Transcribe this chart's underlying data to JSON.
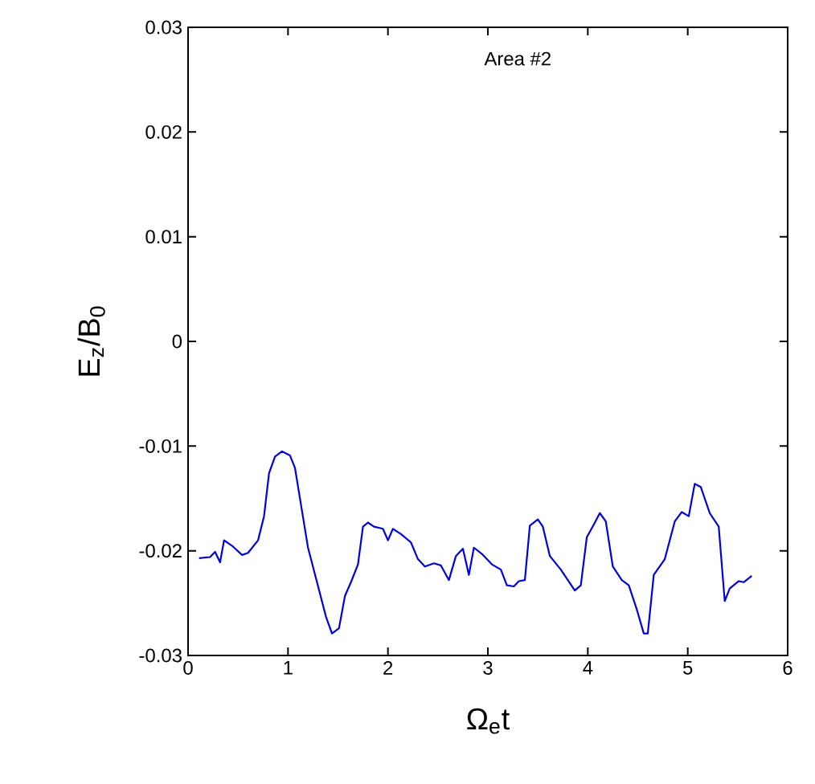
{
  "chart_data": {
    "type": "line",
    "xlabel": "Ω$_{e}$t",
    "ylabel": "E$_{z}$/B$_{0}$",
    "annotations": [
      "Area #2"
    ],
    "xlim": [
      0,
      6
    ],
    "xticks": [
      0,
      1,
      2,
      3,
      4,
      5,
      6
    ],
    "ylim": [
      -0.03,
      0.03
    ],
    "yticks": [
      -0.03,
      -0.02,
      -0.01,
      0,
      0.01,
      0.02,
      0.03
    ],
    "grid": false,
    "marker": "none",
    "line_style": "solid",
    "series": [
      {
        "color": "#0000dd",
        "x": [
          0.11,
          0.22,
          0.27,
          0.32,
          0.36,
          0.45,
          0.54,
          0.6,
          0.7,
          0.76,
          0.81,
          0.87,
          0.94,
          1.02,
          1.07,
          1.14,
          1.2,
          1.29,
          1.38,
          1.44,
          1.51,
          1.57,
          1.63,
          1.7,
          1.75,
          1.8,
          1.86,
          1.95,
          2.0,
          2.05,
          2.13,
          2.23,
          2.3,
          2.37,
          2.46,
          2.53,
          2.61,
          2.68,
          2.75,
          2.81,
          2.86,
          2.94,
          3.04,
          3.13,
          3.19,
          3.26,
          3.31,
          3.37,
          3.42,
          3.5,
          3.55,
          3.62,
          3.73,
          3.8,
          3.87,
          3.93,
          3.99,
          4.06,
          4.12,
          4.18,
          4.25,
          4.34,
          4.41,
          4.49,
          4.56,
          4.6,
          4.66,
          4.77,
          4.87,
          4.94,
          5.01,
          5.07,
          5.13,
          5.22,
          5.31,
          5.37,
          5.42,
          5.51,
          5.56,
          5.64
        ],
        "values": [
          -0.0207,
          -0.0206,
          -0.0201,
          -0.0211,
          -0.019,
          -0.0196,
          -0.0204,
          -0.0202,
          -0.019,
          -0.0167,
          -0.0126,
          -0.011,
          -0.0105,
          -0.0109,
          -0.0121,
          -0.0162,
          -0.0197,
          -0.023,
          -0.0263,
          -0.0279,
          -0.0274,
          -0.0243,
          -0.023,
          -0.0213,
          -0.0177,
          -0.0173,
          -0.0177,
          -0.0179,
          -0.019,
          -0.0179,
          -0.0184,
          -0.0192,
          -0.0208,
          -0.0215,
          -0.0212,
          -0.0214,
          -0.0228,
          -0.0205,
          -0.0198,
          -0.0223,
          -0.0197,
          -0.0203,
          -0.0213,
          -0.0218,
          -0.0233,
          -0.0234,
          -0.0229,
          -0.0228,
          -0.0176,
          -0.017,
          -0.0177,
          -0.0205,
          -0.0218,
          -0.0228,
          -0.0238,
          -0.0233,
          -0.0187,
          -0.0175,
          -0.0164,
          -0.0172,
          -0.0215,
          -0.0228,
          -0.0233,
          -0.0256,
          -0.0279,
          -0.0279,
          -0.0223,
          -0.0208,
          -0.0172,
          -0.0163,
          -0.0167,
          -0.0136,
          -0.0139,
          -0.0164,
          -0.0177,
          -0.0248,
          -0.0236,
          -0.0229,
          -0.023,
          -0.0224
        ]
      }
    ]
  }
}
